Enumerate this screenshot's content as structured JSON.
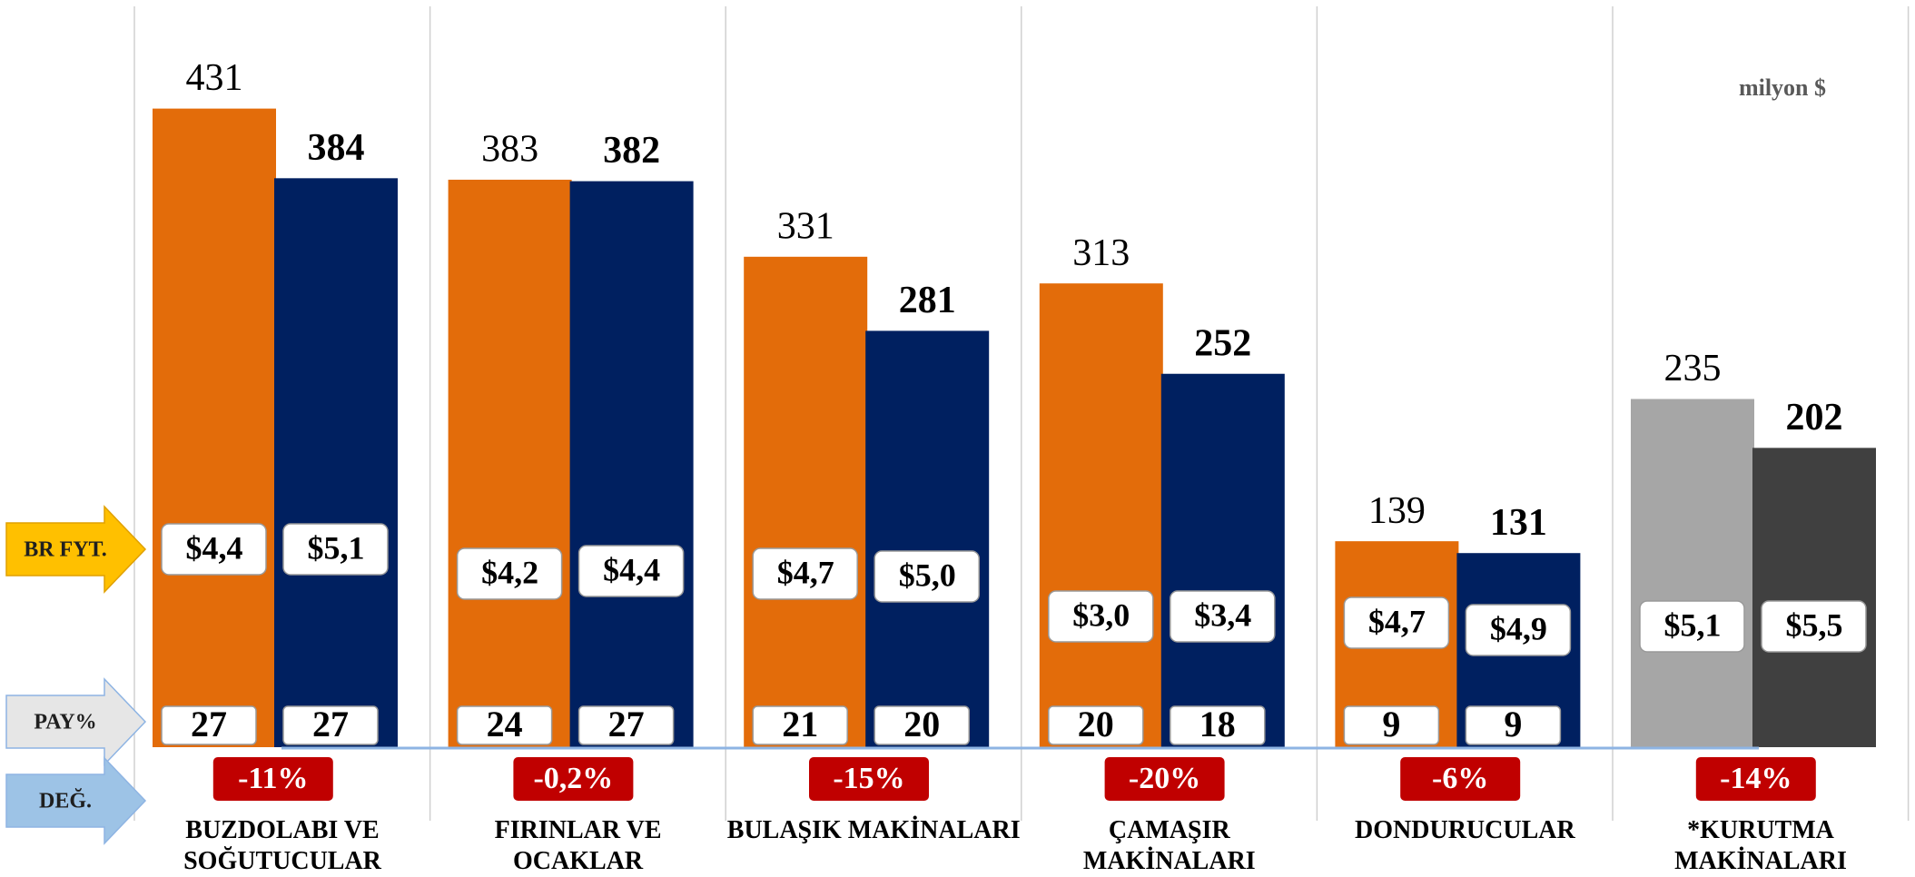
{
  "chart_data": {
    "type": "bar",
    "unit": "milyon $",
    "categories": [
      "BUZDOLABI VE SOĞUTUCULAR",
      "FIRINLAR VE OCAKLAR",
      "BULAŞIK MAKİNALARI",
      "ÇAMAŞIR MAKİNALARI",
      "DONDURUCULAR",
      "*KURUTMA MAKİNALARI"
    ],
    "ylim": [
      0,
      500
    ],
    "row_labels": [
      "BR FYT.",
      "PAY%",
      "DEĞ."
    ],
    "series": [
      {
        "colors": [
          "#e36c0a",
          "#e36c0a",
          "#e36c0a",
          "#e36c0a",
          "#e36c0a",
          "#a6a6a6"
        ],
        "values": [
          431,
          383,
          331,
          313,
          139,
          235
        ],
        "price_labels": [
          "$4,4",
          "$4,2",
          "$4,7",
          "$3,0",
          "$4,7",
          "$5,1"
        ],
        "shares": [
          27,
          24,
          21,
          20,
          9,
          null
        ]
      },
      {
        "colors": [
          "#002060",
          "#002060",
          "#002060",
          "#002060",
          "#002060",
          "#404040"
        ],
        "values": [
          384,
          382,
          281,
          252,
          131,
          202
        ],
        "price_labels": [
          "$5,1",
          "$4,4",
          "$5,0",
          "$3,4",
          "$4,9",
          "$5,5"
        ],
        "shares": [
          27,
          27,
          20,
          18,
          9,
          null
        ]
      }
    ],
    "change": {
      "values": [
        -11,
        -0.2,
        -15,
        -20,
        -6,
        -14
      ],
      "value_labels": [
        "-11%",
        "-0,2%",
        "-15%",
        "-20%",
        "-6%",
        "-14%"
      ]
    }
  }
}
